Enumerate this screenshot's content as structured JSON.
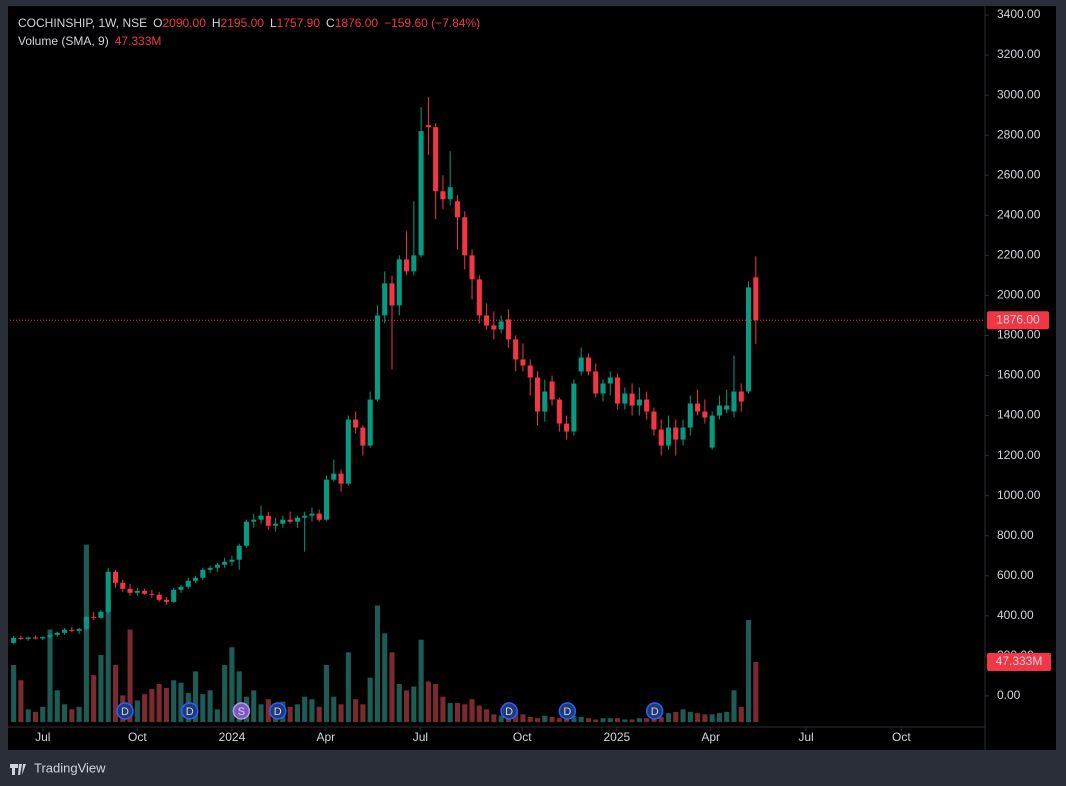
{
  "chart_data": {
    "type": "candlestick",
    "header": {
      "symbol": "COCHINSHIP, 1W, NSE",
      "o_label": "O",
      "o": "2090.00",
      "h_label": "H",
      "h": "2195.00",
      "l_label": "L",
      "l": "1757.90",
      "c_label": "C",
      "c": "1876.00",
      "change": "−159.60 (−7.84%)",
      "volume_title": "Volume (SMA, 9)",
      "volume_value": "47.333M"
    },
    "open": [
      265,
      290,
      285,
      292,
      287,
      294,
      305,
      315,
      330,
      325,
      335,
      395,
      390,
      420,
      620,
      565,
      535,
      515,
      525,
      510,
      505,
      480,
      470,
      530,
      545,
      575,
      590,
      630,
      640,
      655,
      670,
      680,
      750,
      870,
      880,
      900,
      850,
      860,
      880,
      870,
      890,
      900,
      910,
      880,
      1080,
      1110,
      1060,
      1380,
      1340,
      1250,
      1480,
      1900,
      2060,
      1950,
      2180,
      2120,
      2200,
      2850,
      2840,
      2520,
      2480,
      2470,
      2390,
      2200,
      2080,
      1900,
      1850,
      1830,
      1880,
      1780,
      1680,
      1650,
      1590,
      1420,
      1570,
      1480,
      1360,
      1320,
      1620,
      1690,
      1620,
      1510,
      1560,
      1590,
      1460,
      1510,
      1450,
      1480,
      1420,
      1330,
      1250,
      1340,
      1280,
      1340,
      1460,
      1420,
      1240,
      1400,
      1430,
      1420,
      1520,
      1520,
      2090
    ],
    "high": [
      300,
      300,
      295,
      300,
      298,
      312,
      320,
      340,
      345,
      340,
      400,
      420,
      430,
      640,
      630,
      580,
      560,
      540,
      535,
      530,
      520,
      495,
      540,
      555,
      590,
      600,
      640,
      650,
      665,
      690,
      700,
      760,
      880,
      910,
      950,
      920,
      890,
      900,
      920,
      900,
      920,
      940,
      930,
      1100,
      1180,
      1130,
      1400,
      1420,
      1350,
      1520,
      1950,
      2120,
      2100,
      2200,
      2320,
      2470,
      2940,
      2990,
      2860,
      2600,
      2720,
      2500,
      2420,
      2230,
      2100,
      1960,
      1920,
      1900,
      1930,
      1800,
      1760,
      1680,
      1620,
      1580,
      1600,
      1490,
      1400,
      1580,
      1740,
      1710,
      1660,
      1580,
      1620,
      1610,
      1540,
      1560,
      1540,
      1520,
      1440,
      1380,
      1400,
      1380,
      1380,
      1500,
      1530,
      1480,
      1420,
      1500,
      1530,
      1700,
      1560,
      2070,
      2195
    ],
    "low": [
      258,
      280,
      275,
      282,
      280,
      286,
      296,
      305,
      318,
      310,
      325,
      380,
      385,
      410,
      540,
      520,
      500,
      500,
      505,
      490,
      470,
      455,
      465,
      515,
      535,
      565,
      580,
      615,
      620,
      640,
      650,
      630,
      740,
      840,
      860,
      830,
      820,
      840,
      860,
      840,
      720,
      870,
      870,
      875,
      1070,
      1020,
      1050,
      1310,
      1200,
      1240,
      1470,
      1860,
      1630,
      1900,
      2100,
      2100,
      2190,
      2700,
      2380,
      2430,
      2450,
      2230,
      2130,
      1980,
      1860,
      1830,
      1780,
      1810,
      1740,
      1620,
      1620,
      1500,
      1350,
      1370,
      1450,
      1320,
      1280,
      1300,
      1600,
      1600,
      1490,
      1470,
      1500,
      1430,
      1430,
      1400,
      1400,
      1380,
      1300,
      1200,
      1230,
      1200,
      1250,
      1300,
      1400,
      1360,
      1230,
      1380,
      1410,
      1390,
      1420,
      1510,
      1757.9
    ],
    "close": [
      290,
      285,
      292,
      287,
      294,
      305,
      315,
      330,
      325,
      335,
      395,
      390,
      420,
      620,
      565,
      535,
      515,
      525,
      510,
      505,
      480,
      470,
      530,
      545,
      575,
      590,
      630,
      640,
      655,
      670,
      680,
      750,
      870,
      880,
      900,
      850,
      860,
      880,
      870,
      890,
      900,
      910,
      880,
      1080,
      1110,
      1060,
      1380,
      1340,
      1250,
      1480,
      1900,
      2060,
      1950,
      2180,
      2120,
      2200,
      2820,
      2840,
      2520,
      2480,
      2540,
      2390,
      2200,
      2080,
      1900,
      1850,
      1830,
      1870,
      1780,
      1680,
      1650,
      1590,
      1420,
      1520,
      1480,
      1360,
      1320,
      1560,
      1690,
      1620,
      1510,
      1560,
      1590,
      1460,
      1510,
      1450,
      1480,
      1420,
      1330,
      1250,
      1340,
      1280,
      1340,
      1460,
      1420,
      1390,
      1400,
      1450,
      1450,
      1520,
      1470,
      2040,
      1876
    ],
    "volume": [
      45,
      33,
      10,
      8,
      12,
      73,
      25,
      14,
      10,
      12,
      140,
      37,
      53,
      96,
      45,
      21,
      73,
      17,
      22,
      26,
      30,
      27,
      33,
      31,
      23,
      40,
      22,
      25,
      10,
      45,
      59,
      40,
      20,
      25,
      14,
      18,
      8,
      16,
      12,
      14,
      20,
      18,
      12,
      45,
      20,
      14,
      55,
      18,
      14,
      35,
      92,
      70,
      55,
      30,
      25,
      28,
      65,
      32,
      30,
      20,
      15,
      15,
      14,
      18,
      13,
      10,
      6,
      5,
      8,
      10,
      6,
      4,
      3,
      5,
      4,
      3,
      3,
      5,
      4,
      3,
      2,
      3,
      3,
      3,
      2,
      2,
      3,
      3,
      3,
      4,
      7,
      8,
      10,
      8,
      7,
      6,
      6,
      7,
      8,
      25,
      12,
      80.5,
      47.333
    ],
    "volume_ylim": [
      0,
      570
    ],
    "up_color": "#089981",
    "down_color": "#f23645",
    "volume_up_color": "#1d5c55",
    "volume_down_color": "#7b2a2f",
    "xlim": [
      -0.5,
      133.5
    ],
    "xticks": [
      {
        "value": 4,
        "label": "Jul"
      },
      {
        "value": 17,
        "label": "Oct"
      },
      {
        "value": 30,
        "label": "2024"
      },
      {
        "value": 42.9,
        "label": "Apr"
      },
      {
        "value": 55.9,
        "label": "Jul"
      },
      {
        "value": 69.9,
        "label": "Oct"
      },
      {
        "value": 82.9,
        "label": "2025"
      },
      {
        "value": 95.8,
        "label": "Apr"
      },
      {
        "value": 108.9,
        "label": "Jul"
      },
      {
        "value": 122,
        "label": "Oct"
      }
    ],
    "ylim": [
      -260,
      3475
    ],
    "yticks": [
      {
        "value": 0,
        "label": "0.00"
      },
      {
        "value": 200,
        "label": "200.00"
      },
      {
        "value": 400,
        "label": "400.00"
      },
      {
        "value": 600,
        "label": "600.00"
      },
      {
        "value": 800,
        "label": "800.00"
      },
      {
        "value": 1000,
        "label": "1000.00"
      },
      {
        "value": 1200,
        "label": "1200.00"
      },
      {
        "value": 1400,
        "label": "1400.00"
      },
      {
        "value": 1600,
        "label": "1600.00"
      },
      {
        "value": 1800,
        "label": "1800.00"
      },
      {
        "value": 2000,
        "label": "2000.00"
      },
      {
        "value": 2200,
        "label": "2200.00"
      },
      {
        "value": 2400,
        "label": "2400.00"
      },
      {
        "value": 2600,
        "label": "2600.00"
      },
      {
        "value": 2800,
        "label": "2800.00"
      },
      {
        "value": 3000,
        "label": "3000.00"
      },
      {
        "value": 3200,
        "label": "3200.00"
      },
      {
        "value": 3400,
        "label": "3400.00"
      }
    ],
    "price_line": {
      "value": 1876,
      "label": "1876.00"
    },
    "events": [
      {
        "label": "D",
        "x": 15.3
      },
      {
        "label": "D",
        "x": 24.2
      },
      {
        "label": "S",
        "x": 31.3
      },
      {
        "label": "D",
        "x": 36.3
      },
      {
        "label": "D",
        "x": 68.1
      },
      {
        "label": "D",
        "x": 76.1
      },
      {
        "label": "D",
        "x": 88.1
      }
    ],
    "brand": "TradingView"
  }
}
